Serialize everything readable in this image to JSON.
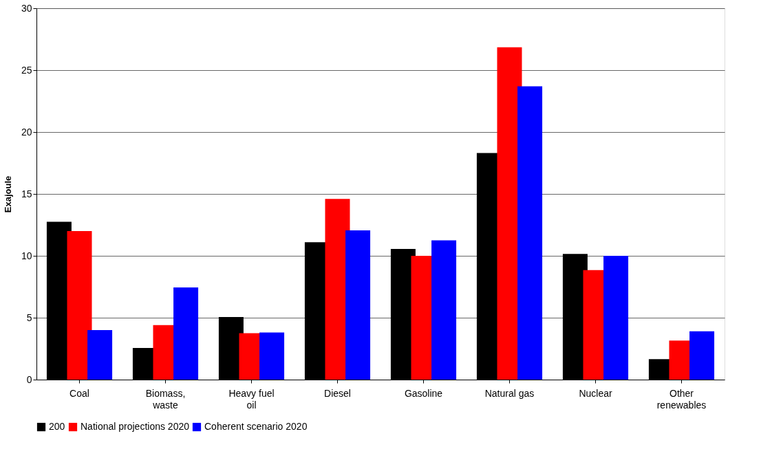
{
  "chart_data": {
    "type": "bar",
    "ylabel": "Exajoule",
    "categories": [
      "Coal",
      "Biomass,\nwaste",
      "Heavy fuel\noil",
      "Diesel",
      "Gasoline",
      "Natural gas",
      "Nuclear",
      "Other\nrenewables"
    ],
    "series": [
      {
        "name": "200",
        "color": "#000000",
        "values": [
          12.75,
          2.55,
          5.05,
          11.1,
          10.55,
          18.3,
          10.15,
          1.65
        ]
      },
      {
        "name": "National projections 2020",
        "color": "#ff0000",
        "values": [
          12.0,
          4.4,
          3.75,
          14.6,
          10.0,
          26.85,
          8.85,
          3.15
        ]
      },
      {
        "name": "Coherent scenario 2020",
        "color": "#0000ff",
        "values": [
          4.0,
          7.45,
          3.8,
          12.05,
          11.25,
          23.7,
          10.0,
          3.9
        ]
      }
    ],
    "ylim": [
      0,
      30
    ],
    "yticks": [
      0,
      5,
      10,
      15,
      20,
      25,
      30
    ],
    "grid": "y",
    "legend": "bottom"
  }
}
